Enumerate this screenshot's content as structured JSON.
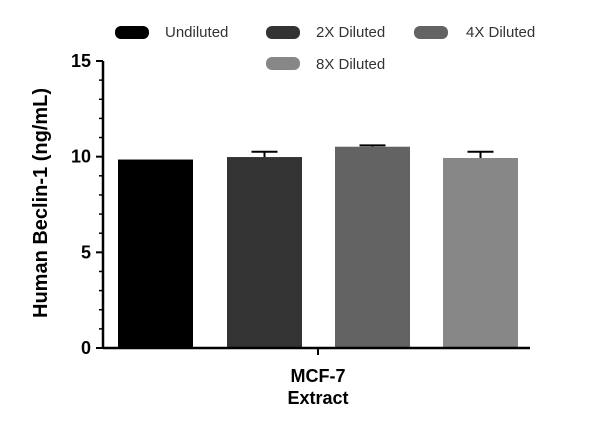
{
  "chart_data": {
    "type": "bar",
    "title": "",
    "ylabel": "Human Beclin-1 (ng/mL)",
    "xlabel": "",
    "categories": [
      "MCF-7 Extract"
    ],
    "category_lines": [
      "MCF-7",
      "Extract"
    ],
    "ylim": [
      0,
      15
    ],
    "yticks": [
      0,
      5,
      10,
      15
    ],
    "grid": false,
    "legend_position": "top",
    "series": [
      {
        "name": "Undiluted",
        "value": 9.85,
        "error": 0.0,
        "color": "#000000"
      },
      {
        "name": "2X Diluted",
        "value": 9.98,
        "error": 0.28,
        "color": "#333333"
      },
      {
        "name": "4X Diluted",
        "value": 10.52,
        "error": 0.07,
        "color": "#636363"
      },
      {
        "name": "8X Diluted",
        "value": 9.93,
        "error": 0.33,
        "color": "#878787"
      }
    ]
  }
}
